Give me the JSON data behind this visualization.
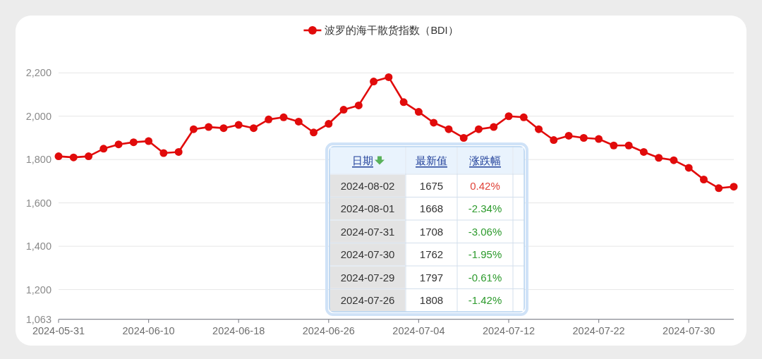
{
  "chart_data": {
    "type": "line",
    "legend": "top",
    "marker": "circle",
    "line_style": "solid",
    "grid": "y",
    "categories": [
      "2024-05-31",
      null,
      null,
      null,
      null,
      null,
      "2024-06-10",
      null,
      null,
      null,
      null,
      null,
      "2024-06-18",
      null,
      null,
      null,
      null,
      null,
      "2024-06-26",
      null,
      null,
      null,
      null,
      null,
      "2024-07-04",
      null,
      null,
      null,
      null,
      null,
      "2024-07-12",
      null,
      null,
      null,
      null,
      null,
      "2024-07-22",
      null,
      null,
      null,
      null,
      null,
      "2024-07-30",
      null,
      null,
      null
    ],
    "series": [
      {
        "name": "波罗的海干散货指数（BDI）",
        "color": "#e10b0b",
        "values": [
          1815,
          1810,
          1815,
          1850,
          1870,
          1880,
          1885,
          1830,
          1835,
          1940,
          1950,
          1945,
          1960,
          1945,
          1985,
          1995,
          1975,
          1925,
          1965,
          2030,
          2050,
          2160,
          2180,
          2065,
          2020,
          1970,
          1940,
          1900,
          1940,
          1950,
          2000,
          1995,
          1940,
          1890,
          1910,
          1900,
          1895,
          1865,
          1865,
          1835,
          1808,
          1797,
          1762,
          1708,
          1668,
          1675
        ]
      }
    ],
    "ylim": [
      1063,
      2200
    ],
    "yticks": [
      {
        "value": 1063,
        "label": "1,063"
      },
      {
        "value": 1200,
        "label": "1,200"
      },
      {
        "value": 1400,
        "label": "1,400"
      },
      {
        "value": 1600,
        "label": "1,600"
      },
      {
        "value": 1800,
        "label": "1,800"
      },
      {
        "value": 2000,
        "label": "2,000"
      },
      {
        "value": 2200,
        "label": "2,200"
      }
    ],
    "annotations": [
      "日期",
      "最新值",
      "涨跌幅",
      "2024-08-02",
      "1675",
      "0.42%",
      "2024-08-01",
      "1668",
      "-2.34%",
      "2024-07-31",
      "1708",
      "-3.06%",
      "2024-07-30",
      "1762",
      "-1.95%",
      "2024-07-29",
      "1797",
      "-0.61%",
      "2024-07-26",
      "1808",
      "-1.42%"
    ]
  }
}
